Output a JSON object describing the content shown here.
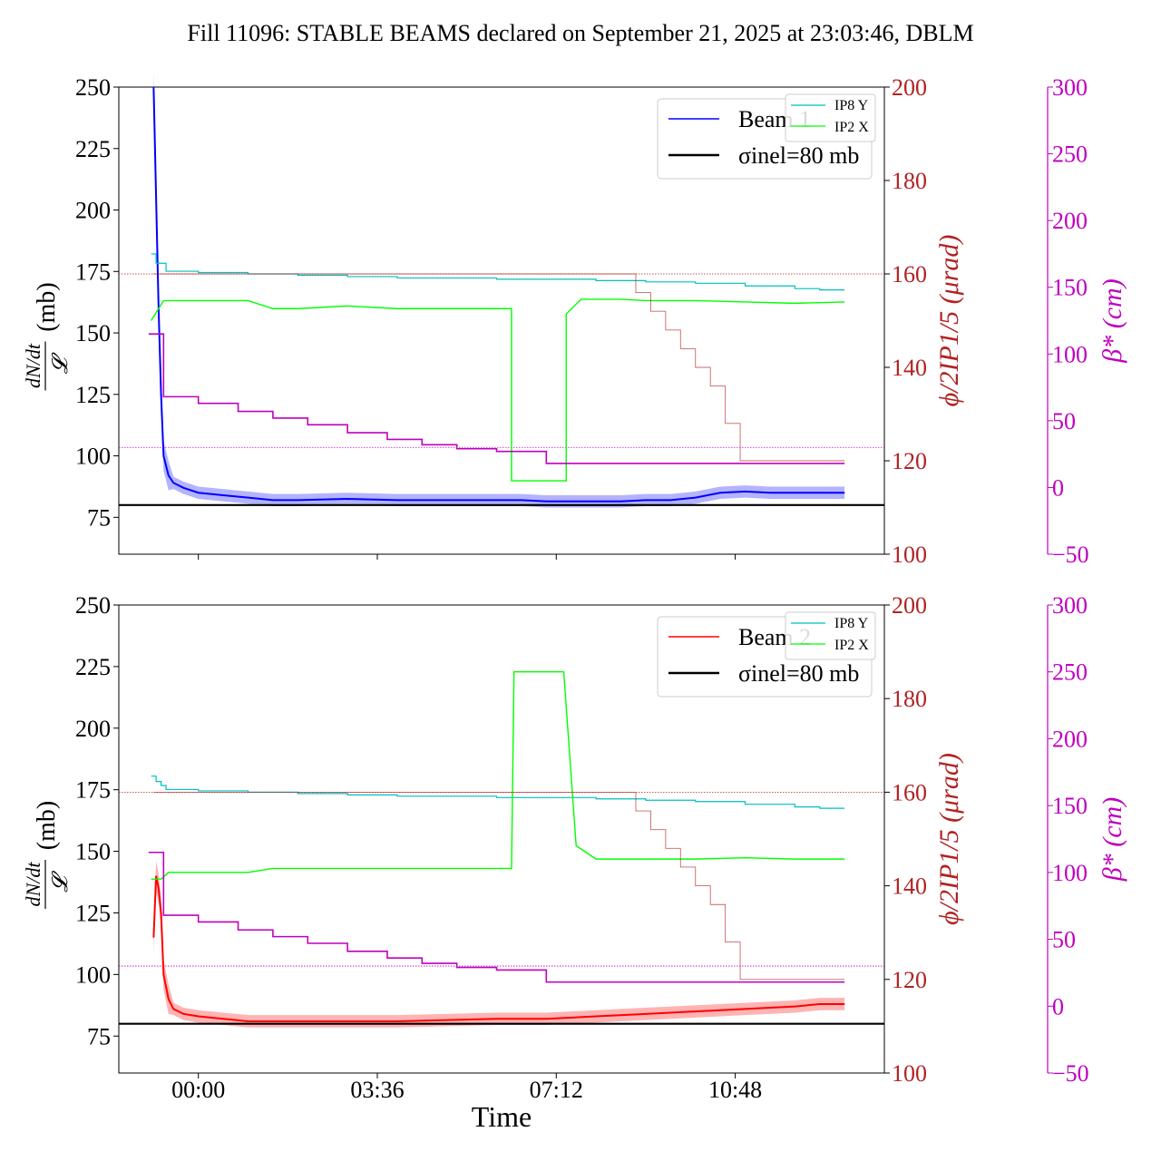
{
  "figure": {
    "title": "Fill 11096: STABLE BEAMS declared on September 21, 2025 at 23:03:46, DBLM",
    "xlabel": "Time",
    "xticks": [
      "00:00",
      "03:36",
      "07:12",
      "10:48"
    ],
    "colors": {
      "ip8y": "#00bfbf",
      "ip2x": "#00ff00",
      "beta": "#bf00bf",
      "phi": "#b22222",
      "inel": "#000000",
      "beam1": "#0000ff",
      "beam1_band": "#8080ff",
      "beam2": "#ff0000",
      "beam2_band": "#ff8080"
    }
  },
  "chart_data": [
    {
      "type": "line",
      "panel": "top",
      "x_unit": "hours since 00:00",
      "xlim": [
        -1.6,
        13.8
      ],
      "ylim_left": [
        60,
        250
      ],
      "ylim_right_phi": [
        100,
        200
      ],
      "ylim_right_beta": [
        -50,
        300
      ],
      "yticks_left": [
        "75",
        "100",
        "125",
        "150",
        "175",
        "200",
        "225",
        "250"
      ],
      "yticks_phi": [
        "100",
        "120",
        "140",
        "160",
        "180",
        "200"
      ],
      "yticks_beta": [
        "−50",
        "0",
        "50",
        "100",
        "150",
        "200",
        "250",
        "300"
      ],
      "ylabel_left_num": "dN/dt",
      "ylabel_left_den": "𝓛",
      "ylabel_left_unit": "(mb)",
      "ylabel_phi": "ϕ/2IP1/5 (μrad)",
      "ylabel_beta": "β* (cm)",
      "legend_main": [
        "Beam 1",
        "σinel=80 mb"
      ],
      "legend_small": [
        "IP8 Y",
        "IP2 X"
      ],
      "inel_level": 80,
      "phi_ref": 160,
      "beta_ref": 30,
      "series": [
        {
          "name": "Beam 1",
          "axis": "left",
          "kind": "beam",
          "x": [
            -0.9,
            -0.85,
            -0.8,
            -0.75,
            -0.7,
            -0.6,
            -0.5,
            -0.3,
            0,
            0.5,
            1,
            1.5,
            2,
            3,
            4,
            5,
            6,
            6.5,
            7,
            7.5,
            8,
            8.5,
            9,
            9.5,
            10,
            10.5,
            11,
            11.5,
            12,
            12.5,
            13
          ],
          "y": [
            250,
            205,
            160,
            125,
            100,
            92,
            89,
            87,
            85,
            84,
            83,
            82,
            82,
            82.5,
            82,
            82,
            82,
            82,
            81.5,
            81.5,
            81.5,
            81.5,
            82,
            82,
            83,
            85,
            85.5,
            85,
            85,
            85,
            85
          ]
        },
        {
          "name": "IP8 Y",
          "axis": "beta",
          "x": [
            -0.95,
            -0.85,
            -0.75,
            -0.65,
            0,
            1,
            2,
            3,
            4,
            5,
            6,
            7,
            8,
            9,
            10,
            11,
            12,
            12.5,
            13
          ],
          "y": [
            175,
            168,
            168,
            162,
            161,
            160,
            159,
            158,
            157,
            157,
            156,
            156,
            155,
            154,
            153,
            151,
            149,
            148,
            148
          ]
        },
        {
          "name": "IP2 X",
          "axis": "beta",
          "x": [
            -0.95,
            -0.7,
            -0.55,
            0,
            1,
            1.5,
            2,
            3,
            4,
            5,
            6,
            6.3,
            6.3,
            6.5,
            7.4,
            7.4,
            7.7,
            8.5,
            9,
            10,
            11,
            12,
            13
          ],
          "y": [
            125,
            140,
            140,
            140,
            140,
            134,
            134,
            136,
            134,
            134,
            134,
            134,
            5,
            5,
            5,
            130,
            141,
            141,
            140,
            140,
            139,
            138,
            139
          ]
        },
        {
          "name": "β*",
          "axis": "beta",
          "x": [
            -1.0,
            -0.7,
            -0.7,
            0,
            0.8,
            1.5,
            2.2,
            3,
            3.8,
            4.5,
            5.2,
            6,
            7,
            8,
            9,
            10,
            11,
            12,
            13
          ],
          "y": [
            115,
            68,
            68,
            63,
            57,
            52,
            47,
            41,
            36,
            32,
            29,
            27,
            18,
            18,
            18,
            18,
            18,
            18,
            18
          ]
        },
        {
          "name": "ϕ/2",
          "axis": "phi",
          "x": [
            -0.9,
            8.5,
            8.8,
            9.1,
            9.4,
            9.7,
            10.0,
            10.3,
            10.6,
            10.9,
            13.0
          ],
          "y": [
            160,
            160,
            156,
            152,
            148,
            144,
            140,
            136,
            128,
            120,
            120
          ]
        }
      ]
    },
    {
      "type": "line",
      "panel": "bottom",
      "x_unit": "hours since 00:00",
      "xlim": [
        -1.6,
        13.8
      ],
      "ylim_left": [
        60,
        250
      ],
      "ylim_right_phi": [
        100,
        200
      ],
      "ylim_right_beta": [
        -50,
        300
      ],
      "yticks_left": [
        "75",
        "100",
        "125",
        "150",
        "175",
        "200",
        "225",
        "250"
      ],
      "yticks_phi": [
        "100",
        "120",
        "140",
        "160",
        "180",
        "200"
      ],
      "yticks_beta": [
        "−50",
        "0",
        "50",
        "100",
        "150",
        "200",
        "250",
        "300"
      ],
      "ylabel_left_num": "dN/dt",
      "ylabel_left_den": "𝓛",
      "ylabel_left_unit": "(mb)",
      "ylabel_phi": "ϕ/2IP1/5 (μrad)",
      "ylabel_beta": "β* (cm)",
      "legend_main": [
        "Beam 2",
        "σinel=80 mb"
      ],
      "legend_small": [
        "IP8 Y",
        "IP2 X"
      ],
      "inel_level": 80,
      "phi_ref": 160,
      "beta_ref": 30,
      "series": [
        {
          "name": "Beam 2",
          "axis": "left",
          "kind": "beam",
          "x": [
            -0.9,
            -0.85,
            -0.8,
            -0.75,
            -0.7,
            -0.6,
            -0.5,
            -0.3,
            0,
            0.5,
            1,
            2,
            3,
            4,
            5,
            6,
            7,
            8,
            9,
            10,
            11,
            12,
            12.5,
            13
          ],
          "y": [
            115,
            140,
            135,
            125,
            100,
            90,
            86,
            84,
            83,
            82,
            81,
            81,
            81,
            81,
            81.5,
            82,
            82,
            83,
            84,
            85,
            86,
            87,
            88,
            88
          ]
        },
        {
          "name": "IP8 Y",
          "axis": "beta",
          "x": [
            -0.95,
            -0.85,
            -0.75,
            -0.65,
            0,
            1,
            2,
            3,
            4,
            5,
            6,
            7,
            8,
            9,
            10,
            11,
            12,
            12.5,
            13
          ],
          "y": [
            172,
            168,
            165,
            162,
            161,
            160,
            159,
            158,
            157,
            157,
            156,
            156,
            155,
            154,
            153,
            151,
            149,
            148,
            148
          ]
        },
        {
          "name": "IP2 X",
          "axis": "beta",
          "x": [
            -0.95,
            -0.75,
            -0.6,
            0,
            1,
            1.5,
            2,
            3,
            4,
            5,
            6,
            6.3,
            6.35,
            6.5,
            7.3,
            7.35,
            7.6,
            8,
            9,
            10,
            11,
            12,
            13
          ],
          "y": [
            95,
            95,
            100,
            100,
            100,
            103,
            103,
            103,
            103,
            103,
            103,
            103,
            250,
            250,
            250,
            250,
            120,
            110,
            110,
            110,
            111,
            110,
            110
          ]
        },
        {
          "name": "β*",
          "axis": "beta",
          "x": [
            -1.0,
            -0.7,
            -0.7,
            0,
            0.8,
            1.5,
            2.2,
            3,
            3.8,
            4.5,
            5.2,
            6,
            7,
            8,
            9,
            10,
            11,
            12,
            13
          ],
          "y": [
            115,
            68,
            68,
            63,
            57,
            52,
            47,
            41,
            36,
            32,
            29,
            27,
            18,
            18,
            18,
            18,
            18,
            18,
            18
          ]
        },
        {
          "name": "ϕ/2",
          "axis": "phi",
          "x": [
            -0.9,
            8.5,
            8.8,
            9.1,
            9.4,
            9.7,
            10.0,
            10.3,
            10.6,
            10.9,
            13.0
          ],
          "y": [
            160,
            160,
            156,
            152,
            148,
            144,
            140,
            136,
            128,
            120,
            120
          ]
        }
      ]
    }
  ]
}
